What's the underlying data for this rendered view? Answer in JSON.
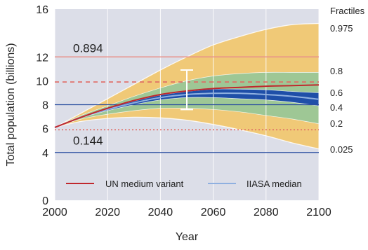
{
  "colors": {
    "plot_background": "#dcdee8",
    "band_outer": "#f0c977",
    "band_middle": "#9ec795",
    "band_inner": "#1f4fa8",
    "un_medium": "#c0282d",
    "iiasa_median": "#8fb0e0",
    "ref_solid": "#e8908a",
    "ref_dashed": "#e06a63",
    "ref_dotted": "#e06a63",
    "blue_hline": "#2a4ea0"
  },
  "chart_data": {
    "type": "area",
    "title": "",
    "xlabel": "Year",
    "ylabel": "Total population (billions)",
    "xlim": [
      2000,
      2100
    ],
    "ylim": [
      0,
      16
    ],
    "x_ticks": [
      "2000",
      "2020",
      "2040",
      "2060",
      "2080",
      "2100"
    ],
    "y_ticks": [
      "0",
      "4",
      "6",
      "8",
      "10",
      "12",
      "16"
    ],
    "x": [
      2000,
      2010,
      2020,
      2030,
      2040,
      2050,
      2060,
      2070,
      2080,
      2090,
      2100
    ],
    "fractile_header": "Fractiles",
    "fractiles": [
      {
        "label": "0.975",
        "values": [
          6.1,
          7.3,
          8.5,
          9.7,
          10.9,
          12.0,
          13.0,
          13.7,
          14.3,
          14.7,
          14.8
        ]
      },
      {
        "label": "0.8",
        "values": [
          6.1,
          7.1,
          7.9,
          8.7,
          9.4,
          10.0,
          10.4,
          10.6,
          10.7,
          10.7,
          10.7
        ]
      },
      {
        "label": "0.6",
        "values": [
          6.1,
          7.0,
          7.7,
          8.3,
          8.8,
          9.1,
          9.3,
          9.3,
          9.25,
          9.1,
          9.0
        ]
      },
      {
        "label": "0.4",
        "values": [
          6.1,
          6.9,
          7.5,
          8.0,
          8.4,
          8.6,
          8.6,
          8.5,
          8.4,
          8.2,
          7.9
        ]
      },
      {
        "label": "0.2",
        "values": [
          6.1,
          6.8,
          7.2,
          7.5,
          7.7,
          7.7,
          7.6,
          7.4,
          7.1,
          6.8,
          6.4
        ]
      },
      {
        "label": "0.025",
        "values": [
          6.1,
          6.6,
          6.85,
          6.95,
          6.9,
          6.7,
          6.35,
          5.9,
          5.4,
          4.8,
          4.3
        ]
      }
    ],
    "series": [
      {
        "name": "UN medium variant",
        "values": [
          6.1,
          6.95,
          7.7,
          8.35,
          8.85,
          9.15,
          9.35,
          9.45,
          9.55,
          9.6,
          9.65
        ]
      },
      {
        "name": "IIASA median",
        "values": [
          6.1,
          6.95,
          7.6,
          8.15,
          8.6,
          8.85,
          8.95,
          8.95,
          8.85,
          8.7,
          8.45
        ]
      }
    ],
    "reference_lines": [
      {
        "value": 12,
        "style": "solid",
        "label": "0.894"
      },
      {
        "value": 9.9,
        "style": "dashed",
        "label": ""
      },
      {
        "value": 5.9,
        "style": "dotted",
        "label": "0.144"
      },
      {
        "value": 8,
        "style": "solid-blue",
        "label": ""
      },
      {
        "value": 4,
        "style": "solid-blue",
        "label": ""
      }
    ],
    "error_bar": {
      "x": 2050,
      "low": 7.6,
      "high": 10.9
    },
    "grid": true,
    "legend": "bottom"
  }
}
